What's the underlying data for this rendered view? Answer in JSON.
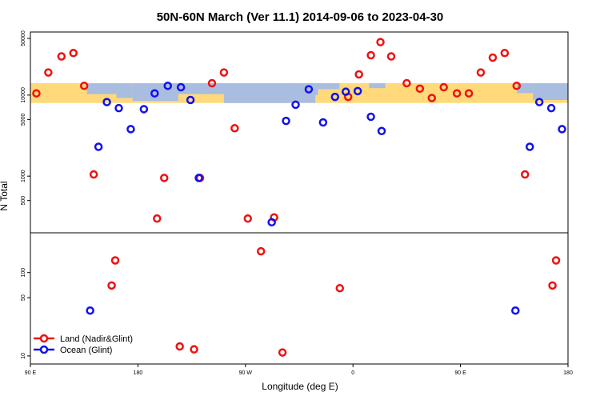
{
  "chart_data": {
    "type": "scatter",
    "title": "50N-60N March (Ver 11.1)   2014-09-06 to 2023-04-30",
    "xlabel": "Longitude (deg E)",
    "ylabel": "N Total",
    "x_ticks": [
      {
        "value": -90,
        "label": "90 E"
      },
      {
        "value": 0,
        "label": "180"
      },
      {
        "value": 90,
        "label": "90 W"
      },
      {
        "value": 180,
        "label": "0"
      },
      {
        "value": 270,
        "label": "90 E"
      },
      {
        "value": 360,
        "label": "180"
      }
    ],
    "xlim": [
      -90,
      360
    ],
    "upper_panel": {
      "scale": "log",
      "ylim": [
        200,
        60000
      ],
      "y_ticks": [
        500,
        1000,
        5000,
        10000,
        50000
      ],
      "map_band": {
        "ymin": 8000,
        "ymax": 14000,
        "land_color": "#ffd97a",
        "ocean_color": "#a9bde0"
      }
    },
    "lower_panel": {
      "scale": "log",
      "ylim": [
        8,
        300
      ],
      "y_ticks": [
        10,
        50,
        100
      ]
    },
    "series": [
      {
        "name": "Land (Nadir&Glint)",
        "color": "#ee1111",
        "upper": [
          {
            "x": -85,
            "y": 10500
          },
          {
            "x": -75,
            "y": 19000
          },
          {
            "x": -64,
            "y": 30000
          },
          {
            "x": -54,
            "y": 33000
          },
          {
            "x": -45,
            "y": 13000
          },
          {
            "x": -37,
            "y": 1050
          },
          {
            "x": 16,
            "y": 300
          },
          {
            "x": 22,
            "y": 950
          },
          {
            "x": 52,
            "y": 950
          },
          {
            "x": 62,
            "y": 14000
          },
          {
            "x": 72,
            "y": 19000
          },
          {
            "x": 81,
            "y": 3900
          },
          {
            "x": 92,
            "y": 300
          },
          {
            "x": 114,
            "y": 310
          },
          {
            "x": 176,
            "y": 9500
          },
          {
            "x": 185,
            "y": 18000
          },
          {
            "x": 195,
            "y": 31000
          },
          {
            "x": 203,
            "y": 45000
          },
          {
            "x": 212,
            "y": 30000
          },
          {
            "x": 225,
            "y": 14000
          },
          {
            "x": 236,
            "y": 12000
          },
          {
            "x": 246,
            "y": 9200
          },
          {
            "x": 256,
            "y": 12500
          },
          {
            "x": 267,
            "y": 10500
          },
          {
            "x": 277,
            "y": 10500
          },
          {
            "x": 287,
            "y": 19000
          },
          {
            "x": 297,
            "y": 29000
          },
          {
            "x": 307,
            "y": 33000
          },
          {
            "x": 317,
            "y": 13000
          },
          {
            "x": 324,
            "y": 1050
          }
        ],
        "lower": [
          {
            "x": -22,
            "y": 70
          },
          {
            "x": -19,
            "y": 140
          },
          {
            "x": 35,
            "y": 13
          },
          {
            "x": 47,
            "y": 12
          },
          {
            "x": 103,
            "y": 180
          },
          {
            "x": 121,
            "y": 11
          },
          {
            "x": 169,
            "y": 65
          },
          {
            "x": 347,
            "y": 70
          },
          {
            "x": 350,
            "y": 140
          }
        ]
      },
      {
        "name": "Ocean (Glint)",
        "color": "#1111ee",
        "upper": [
          {
            "x": -33,
            "y": 2300
          },
          {
            "x": -26,
            "y": 8200
          },
          {
            "x": -16,
            "y": 6900
          },
          {
            "x": -6,
            "y": 3800
          },
          {
            "x": 5,
            "y": 6700
          },
          {
            "x": 14,
            "y": 10500
          },
          {
            "x": 25,
            "y": 13000
          },
          {
            "x": 36,
            "y": 12500
          },
          {
            "x": 44,
            "y": 8700
          },
          {
            "x": 51,
            "y": 950
          },
          {
            "x": 112,
            "y": 270
          },
          {
            "x": 124,
            "y": 4800
          },
          {
            "x": 132,
            "y": 7600
          },
          {
            "x": 143,
            "y": 11800
          },
          {
            "x": 155,
            "y": 4600
          },
          {
            "x": 165,
            "y": 9500
          },
          {
            "x": 174,
            "y": 11000
          },
          {
            "x": 184,
            "y": 11200
          },
          {
            "x": 195,
            "y": 5400
          },
          {
            "x": 204,
            "y": 3600
          },
          {
            "x": 328,
            "y": 2300
          },
          {
            "x": 336,
            "y": 8200
          },
          {
            "x": 346,
            "y": 6900
          },
          {
            "x": 355,
            "y": 3800
          }
        ],
        "lower": [
          {
            "x": -40,
            "y": 35
          },
          {
            "x": 316,
            "y": 35
          }
        ]
      }
    ],
    "legend": [
      {
        "label": "Land (Nadir&Glint)",
        "color": "#ee1111"
      },
      {
        "label": "Ocean (Glint)",
        "color": "#1111ee"
      }
    ]
  }
}
